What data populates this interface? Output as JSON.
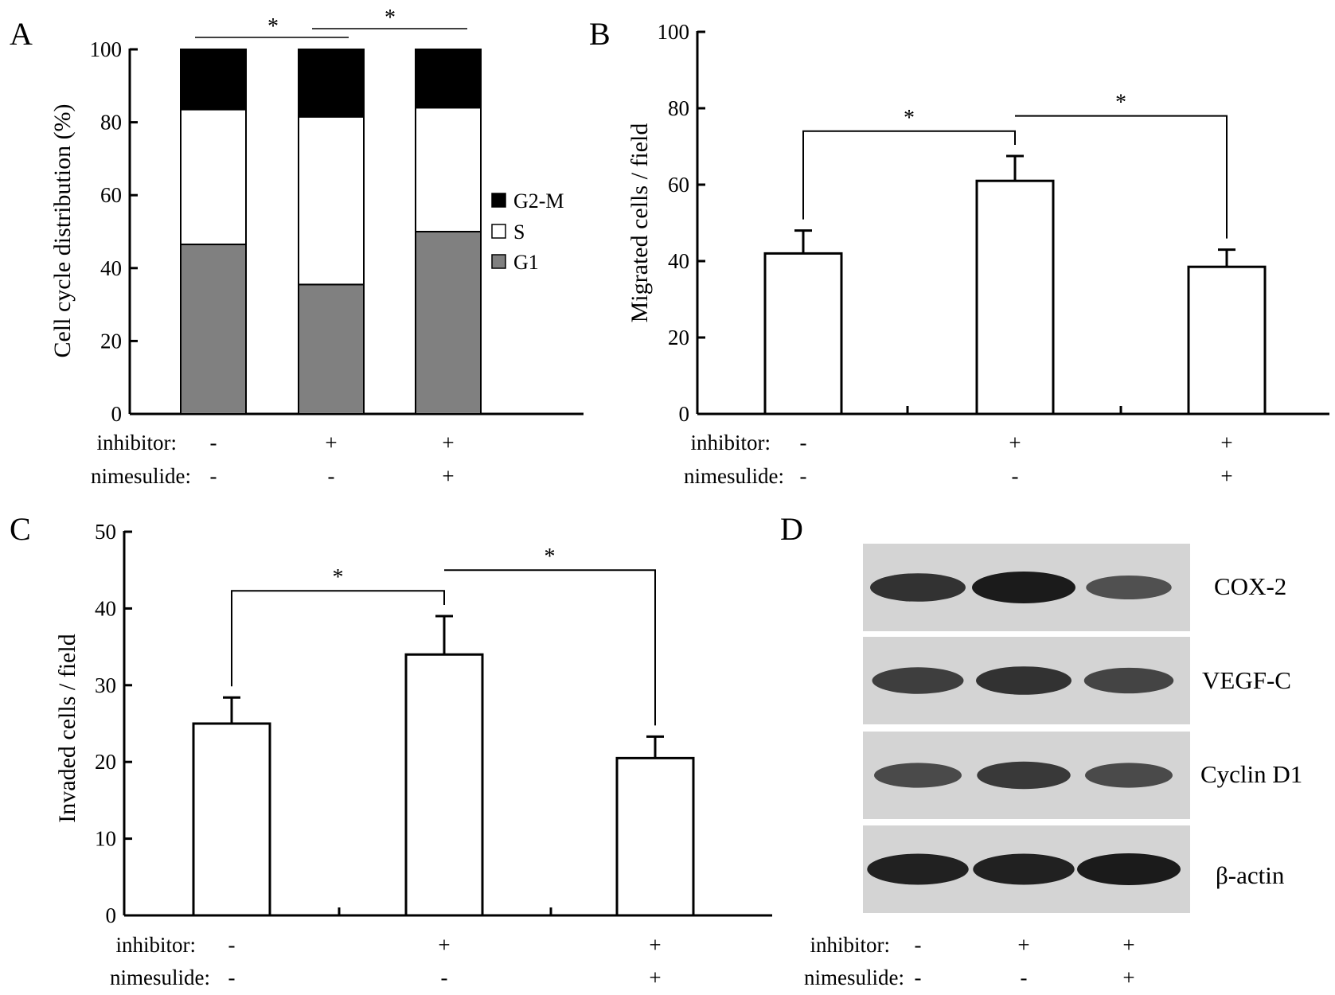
{
  "colors": {
    "background": "#ffffff",
    "ink": "#000000",
    "g1": "#808080",
    "s": "#ffffff",
    "g2m": "#000000",
    "blot_bg": "#d4d4d4"
  },
  "condition_labels": {
    "inhibitor": "inhibitor:",
    "nimesulide": "nimesulide:"
  },
  "chart_data": [
    {
      "panel": "A",
      "type": "bar",
      "stacked": true,
      "ylabel": "Cell cycle distribution (%)",
      "ylim": [
        0,
        100
      ],
      "yticks": [
        "0",
        "20",
        "40",
        "60",
        "80",
        "100"
      ],
      "categories": [
        "1",
        "2",
        "3"
      ],
      "conditions": {
        "inhibitor": [
          "-",
          "+",
          "+"
        ],
        "nimesulide": [
          "-",
          "-",
          "+"
        ]
      },
      "series": [
        {
          "name": "G1",
          "values": [
            46.5,
            35.5,
            50
          ]
        },
        {
          "name": "S",
          "values": [
            37,
            46,
            34
          ]
        },
        {
          "name": "G2-M",
          "values": [
            16.5,
            18.5,
            16
          ]
        }
      ],
      "legend": {
        "placement": "right",
        "entries": [
          "G2-M",
          "S",
          "G1"
        ]
      },
      "significance": [
        {
          "between": [
            1,
            2
          ],
          "label": "*"
        },
        {
          "between": [
            2,
            3
          ],
          "label": "*"
        }
      ]
    },
    {
      "panel": "B",
      "type": "bar",
      "ylabel": "Migrated cells / field",
      "ylim": [
        0,
        100
      ],
      "yticks": [
        "0",
        "20",
        "40",
        "60",
        "80",
        "100"
      ],
      "categories": [
        "1",
        "2",
        "3"
      ],
      "conditions": {
        "inhibitor": [
          "-",
          "+",
          "+"
        ],
        "nimesulide": [
          "-",
          "-",
          "+"
        ]
      },
      "values": [
        42,
        61,
        38.5
      ],
      "errors": [
        6,
        6.5,
        4.5
      ],
      "significance": [
        {
          "between": [
            1,
            2
          ],
          "label": "*"
        },
        {
          "between": [
            2,
            3
          ],
          "label": "*"
        }
      ]
    },
    {
      "panel": "C",
      "type": "bar",
      "ylabel": "Invaded cells / field",
      "ylim": [
        0,
        50
      ],
      "yticks": [
        "0",
        "10",
        "20",
        "30",
        "40",
        "50"
      ],
      "categories": [
        "1",
        "2",
        "3"
      ],
      "conditions": {
        "inhibitor": [
          "-",
          "+",
          "+"
        ],
        "nimesulide": [
          "-",
          "-",
          "+"
        ]
      },
      "values": [
        25,
        34,
        20.5
      ],
      "errors": [
        3.4,
        5,
        2.8
      ],
      "significance": [
        {
          "between": [
            1,
            2
          ],
          "label": "*"
        },
        {
          "between": [
            2,
            3
          ],
          "label": "*"
        }
      ]
    }
  ],
  "blot": {
    "panel": "D",
    "rows": [
      {
        "name": "COX-2",
        "intensity": [
          0.8,
          1.0,
          0.55
        ]
      },
      {
        "name": "VEGF-C",
        "intensity": [
          0.7,
          0.8,
          0.65
        ]
      },
      {
        "name": "Cyclin D1",
        "intensity": [
          0.6,
          0.75,
          0.6
        ]
      },
      {
        "name": "β-actin",
        "intensity": [
          0.95,
          0.95,
          1.0
        ]
      }
    ],
    "conditions": {
      "inhibitor": [
        "-",
        "+",
        "+"
      ],
      "nimesulide": [
        "-",
        "-",
        "+"
      ]
    }
  }
}
